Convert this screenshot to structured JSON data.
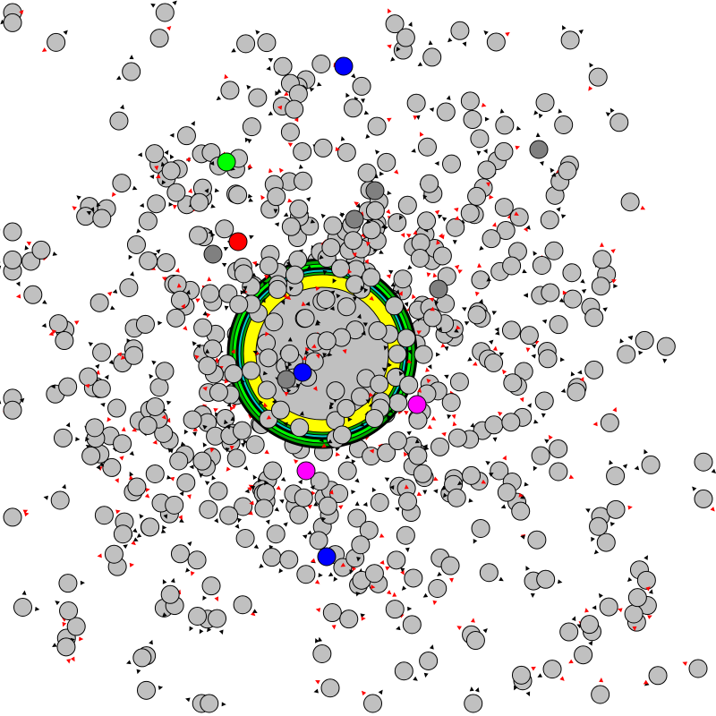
{
  "graph": {
    "kind": "force-directed-node-graph",
    "node_fill_default": "#c0c0c0",
    "node_stroke": "#000000",
    "arrow_colors": [
      "#000000",
      "#ff0000"
    ],
    "highlight_colors": {
      "blue": "#0000ff",
      "green": "#00ff00",
      "red": "#ff0000",
      "magenta": "#ff00ff",
      "dark_gray": "#808080",
      "yellow": "#ffff00",
      "cyan": "#00cccc"
    },
    "hub_ring_colors": [
      "#000000",
      "#00aa00",
      "#00ff00",
      "#00cccc",
      "#ffff00",
      "#c0c0c0"
    ]
  }
}
